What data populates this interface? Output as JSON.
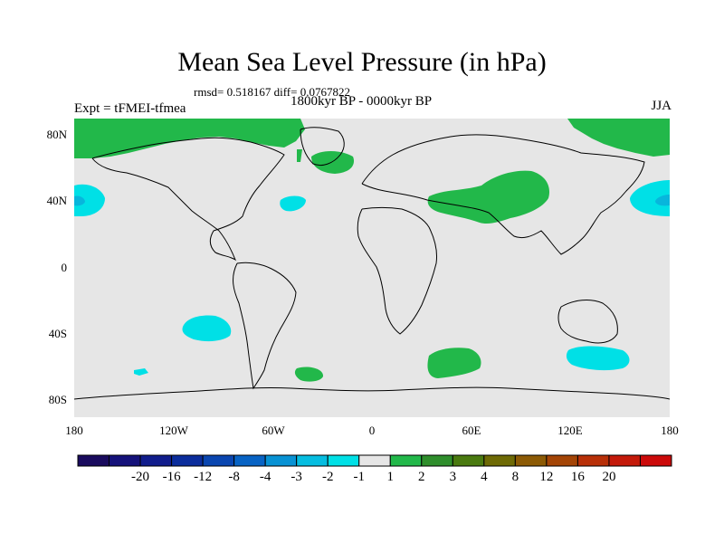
{
  "title": "Mean Sea Level Pressure (in hPa)",
  "stats": "rmsd= 0.518167 diff= 0.0767822",
  "experiment": "Expt = tFMEI-tfmea",
  "period": "1800kyr BP - 0000kyr BP",
  "season": "JJA",
  "lat_labels": [
    "80N",
    "40N",
    "0",
    "40S",
    "80S"
  ],
  "lon_labels": [
    "180",
    "120W",
    "60W",
    "0",
    "60E",
    "120E",
    "180"
  ],
  "colorbar": {
    "labels": [
      "-20",
      "-16",
      "-12",
      "-8",
      "-4",
      "-3",
      "-2",
      "-1",
      "1",
      "2",
      "3",
      "4",
      "8",
      "12",
      "16",
      "20"
    ],
    "colors": [
      "#1a0b5e",
      "#15127a",
      "#111d8c",
      "#0b2d9c",
      "#0a46b0",
      "#0863c4",
      "#0892d4",
      "#06bde0",
      "#00e0e6",
      "#e6e6e6",
      "#22b84a",
      "#2f8e2c",
      "#4a7a10",
      "#6e6a05",
      "#8c5a05",
      "#a44506",
      "#b83008",
      "#c41a0a",
      "#cc0a0a"
    ]
  },
  "colors": {
    "background": "#e6e6e6",
    "positive_anomaly": "#22b84a",
    "negative_anomaly": "#00e0e6",
    "negative_core": "#08b6dc",
    "coastline": "#000000"
  }
}
